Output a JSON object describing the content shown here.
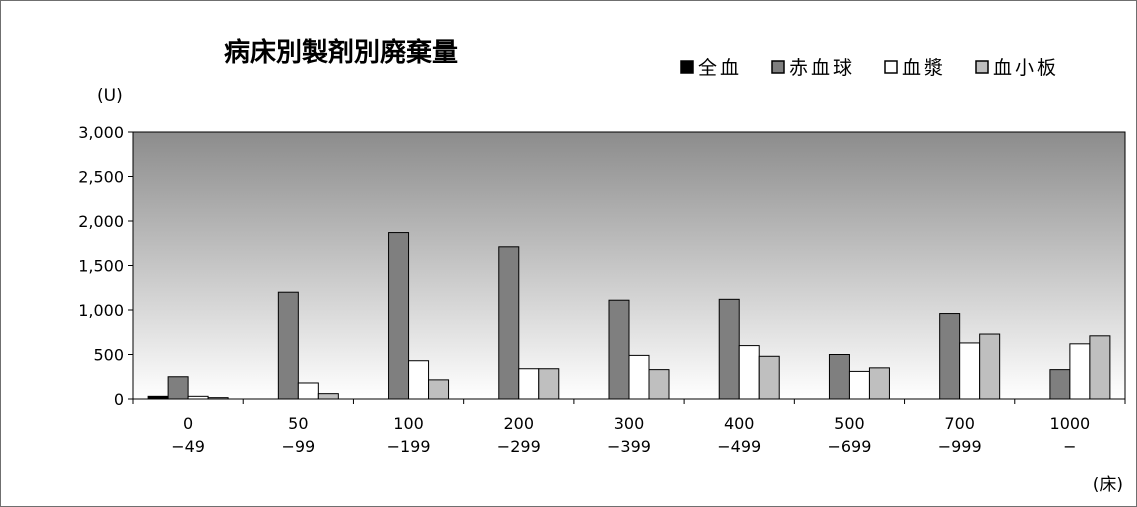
{
  "chart_data": {
    "type": "bar",
    "title": "病床別製剤別廃棄量",
    "ylabel": "(U)",
    "xlabel": "(床)",
    "ylim": [
      0,
      3000
    ],
    "yticks": [
      0,
      500,
      1000,
      1500,
      2000,
      2500,
      3000
    ],
    "ytick_labels": [
      "0",
      "500",
      "1,000",
      "1,500",
      "2,000",
      "2,500",
      "3,000"
    ],
    "categories": [
      [
        "0",
        "−49"
      ],
      [
        "50",
        "−99"
      ],
      [
        "100",
        "−199"
      ],
      [
        "200",
        "−299"
      ],
      [
        "300",
        "−399"
      ],
      [
        "400",
        "−499"
      ],
      [
        "500",
        "−699"
      ],
      [
        "700",
        "−999"
      ],
      [
        "1000",
        "−"
      ]
    ],
    "legend_position": "top-right",
    "series": [
      {
        "name": "全血",
        "color": "#000000",
        "values": [
          30,
          0,
          0,
          0,
          0,
          0,
          0,
          0,
          0
        ]
      },
      {
        "name": "赤血球",
        "color": "#7f7f7f",
        "values": [
          250,
          1200,
          1870,
          1710,
          1110,
          1120,
          500,
          960,
          330
        ]
      },
      {
        "name": "血漿",
        "color": "#ffffff",
        "values": [
          30,
          180,
          430,
          340,
          490,
          600,
          310,
          630,
          620
        ]
      },
      {
        "name": "血小板",
        "color": "#bfbfbf",
        "values": [
          15,
          60,
          215,
          340,
          330,
          480,
          350,
          730,
          710
        ]
      }
    ],
    "plot_background": [
      "#8c8c8c",
      "#ffffff"
    ]
  }
}
